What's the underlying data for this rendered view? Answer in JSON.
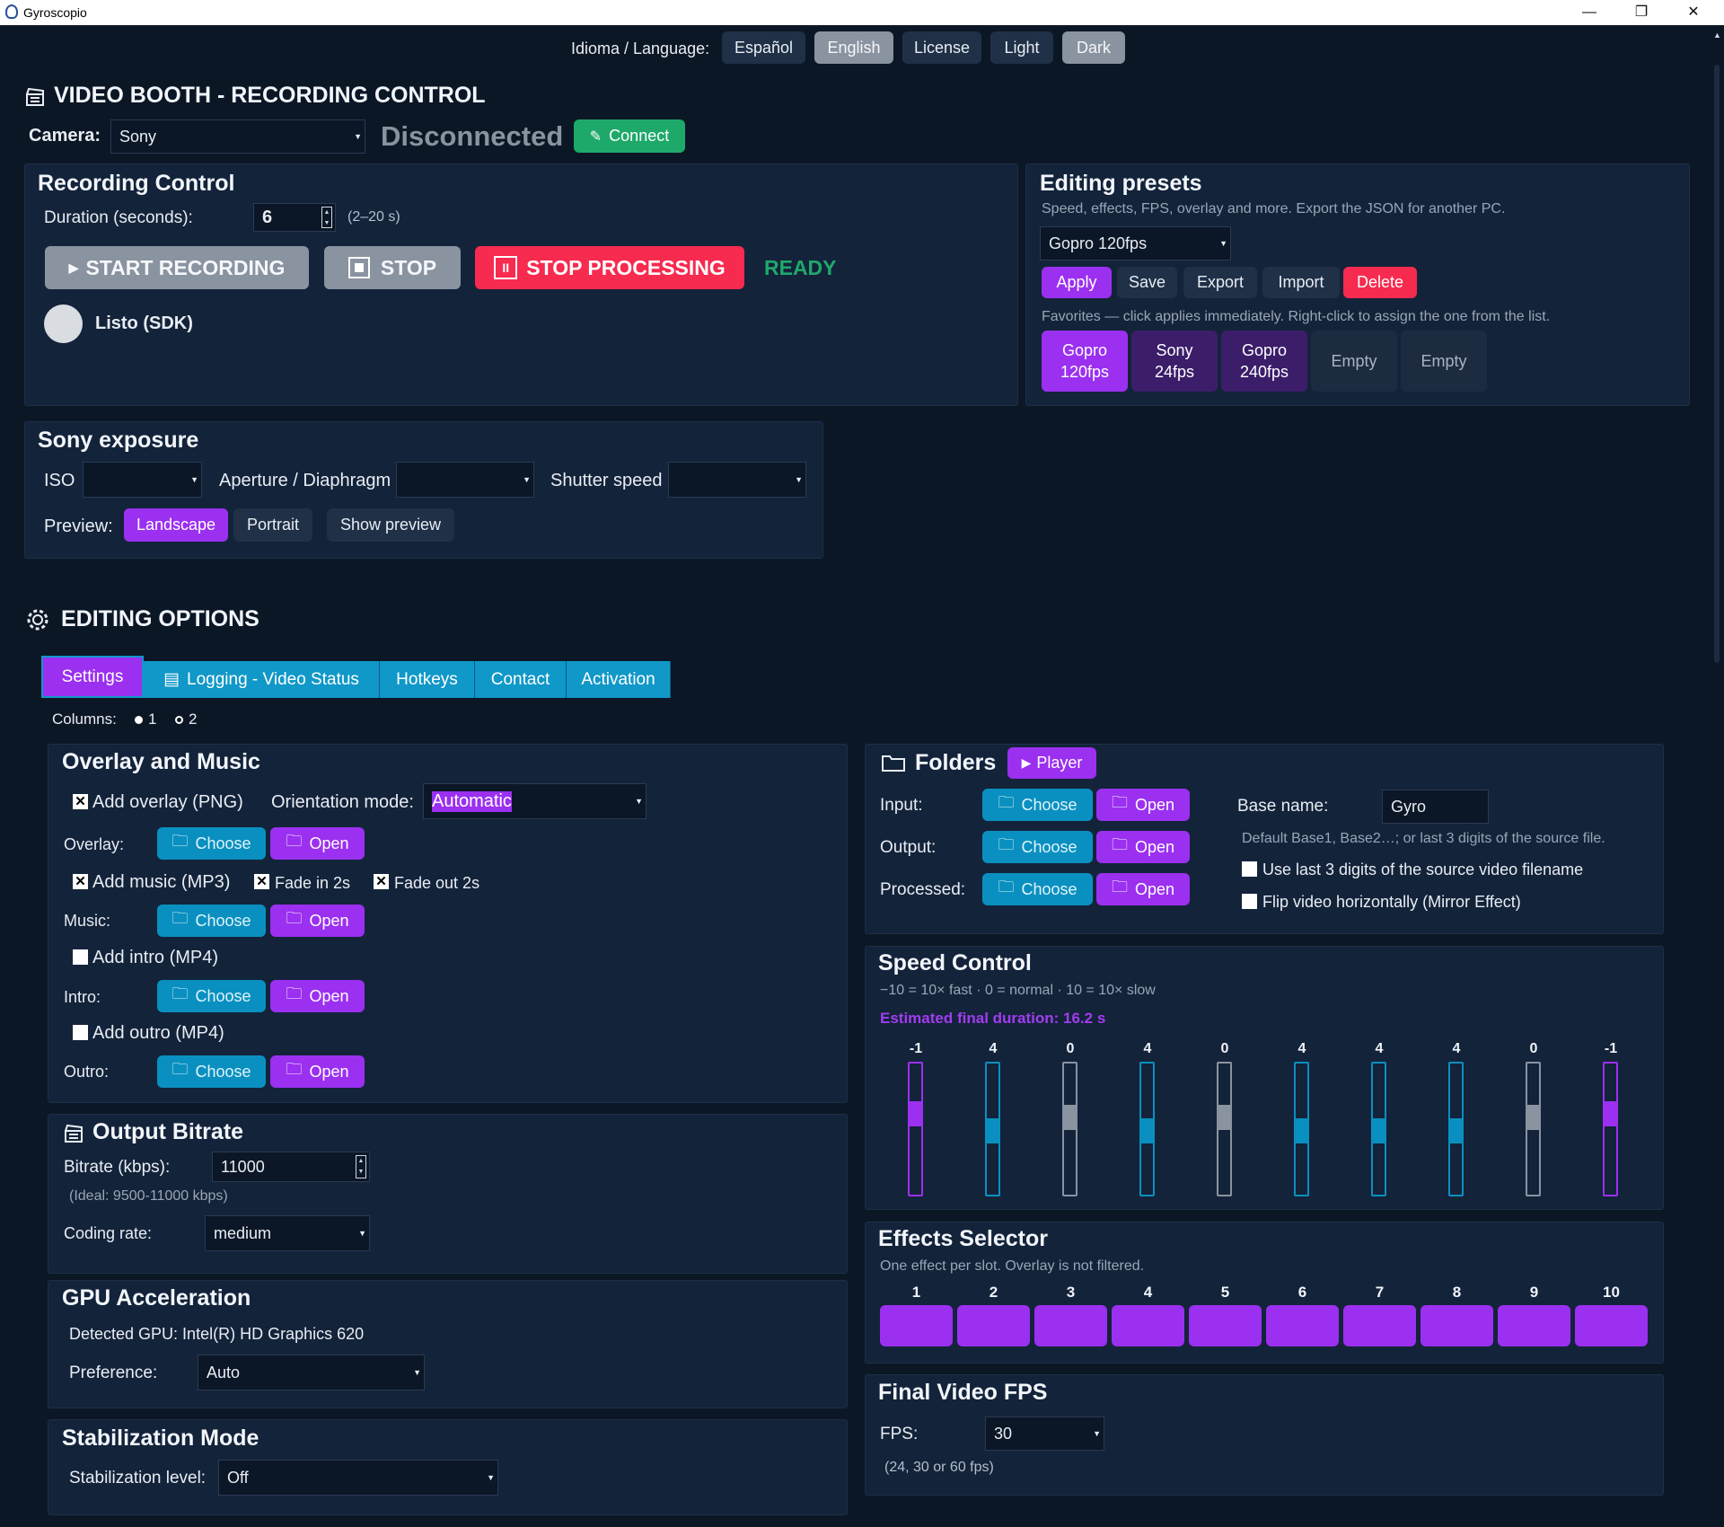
{
  "window": {
    "title": "Gyroscopio",
    "minimize": "—",
    "restore": "❐",
    "close": "✕"
  },
  "lang": {
    "label": "Idioma / Language:",
    "espanol": "Español",
    "english": "English",
    "license": "License",
    "light": "Light",
    "dark": "Dark"
  },
  "header": {
    "title": "VIDEO BOOTH - RECORDING CONTROL",
    "camera_label": "Camera:",
    "camera_value": "Sony",
    "status": "Disconnected",
    "connect": "Connect"
  },
  "recording": {
    "title": "Recording Control",
    "duration_label": "Duration (seconds):",
    "duration_value": "6",
    "duration_hint": "(2–20 s)",
    "start": "START RECORDING",
    "stop": "STOP",
    "stop_processing": "STOP PROCESSING",
    "state": "READY",
    "sdk_status": "Listo (SDK)"
  },
  "presets": {
    "title": "Editing presets",
    "subtitle": "Speed, effects, FPS, overlay and more. Export the JSON for another PC.",
    "selected": "Gopro 120fps",
    "apply": "Apply",
    "save": "Save",
    "export": "Export",
    "import": "Import",
    "delete": "Delete",
    "fav_hint": "Favorites — click applies immediately. Right-click to assign the one from the list.",
    "favorites": [
      {
        "l1": "Gopro",
        "l2": "120fps"
      },
      {
        "l1": "Sony",
        "l2": "24fps"
      },
      {
        "l1": "Gopro",
        "l2": "240fps"
      },
      {
        "l1": "Empty",
        "l2": ""
      },
      {
        "l1": "Empty",
        "l2": ""
      }
    ]
  },
  "exposure": {
    "title": "Sony exposure",
    "iso": "ISO",
    "aperture": "Aperture / Diaphragm",
    "shutter": "Shutter speed",
    "preview_label": "Preview:",
    "landscape": "Landscape",
    "portrait": "Portrait",
    "show_preview": "Show preview"
  },
  "editing": {
    "title": "EDITING OPTIONS",
    "tabs": {
      "settings": "Settings",
      "logging": "Logging - Video Status",
      "hotkeys": "Hotkeys",
      "contact": "Contact",
      "activation": "Activation"
    },
    "columns_label": "Columns:",
    "col1": "1",
    "col2": "2"
  },
  "overlay": {
    "title": "Overlay and Music",
    "add_overlay": "Add overlay (PNG)",
    "orientation_label": "Orientation mode:",
    "orientation_value": "Automatic",
    "overlay_label": "Overlay:",
    "add_music": "Add music (MP3)",
    "fade_in": "Fade in 2s",
    "fade_out": "Fade out 2s",
    "music_label": "Music:",
    "add_intro": "Add intro (MP4)",
    "intro_label": "Intro:",
    "add_outro": "Add outro (MP4)",
    "outro_label": "Outro:",
    "choose": "Choose",
    "open": "Open",
    "check_mark": "✕"
  },
  "bitrate": {
    "title": "Output Bitrate",
    "bitrate_label": "Bitrate (kbps):",
    "bitrate_value": "11000",
    "ideal": "(Ideal: 9500-11000 kbps)",
    "coding_label": "Coding rate:",
    "coding_value": "medium"
  },
  "gpu": {
    "title": "GPU Acceleration",
    "detected": "Detected GPU: Intel(R) HD Graphics 620",
    "preference_label": "Preference:",
    "preference_value": "Auto"
  },
  "stabilization": {
    "title": "Stabilization Mode",
    "level_label": "Stabilization level:",
    "level_value": "Off"
  },
  "folders": {
    "title": "Folders",
    "player": "Player",
    "input": "Input:",
    "output": "Output:",
    "processed": "Processed:",
    "choose": "Choose",
    "open": "Open",
    "base_label": "Base name:",
    "base_value": "Gyro",
    "base_hint": "Default Base1, Base2…; or last 3 digits of the source file.",
    "last3": "Use last 3 digits of the source video filename",
    "flip": "Flip video horizontally (Mirror Effect)"
  },
  "speed": {
    "title": "Speed Control",
    "hint": "−10 = 10× fast · 0 = normal · 10 = 10× slow",
    "estimate": "Estimated final duration: 16.2 s",
    "values": [
      -1,
      4,
      0,
      4,
      0,
      4,
      4,
      4,
      0,
      -1
    ]
  },
  "effects": {
    "title": "Effects Selector",
    "hint": "One effect per slot. Overlay is not filtered.",
    "slots": [
      "1",
      "2",
      "3",
      "4",
      "5",
      "6",
      "7",
      "8",
      "9",
      "10"
    ]
  },
  "fps": {
    "title": "Final Video FPS",
    "label": "FPS:",
    "value": "30",
    "hint": "(24, 30 or 60 fps)"
  },
  "colors": {
    "accent": "#9b30f0",
    "teal": "#0a90c0",
    "danger": "#f72a4f",
    "ok": "#1ea96b"
  }
}
